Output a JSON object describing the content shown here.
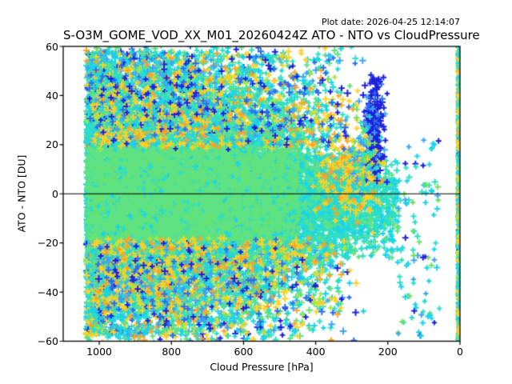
{
  "chart_data": {
    "type": "scatter",
    "title": "S-O3M_GOME_VOD_XX_M01_20260424Z ATO - NTO vs CloudPressure",
    "plot_date": "Plot date: 2026-04-25 12:14:07",
    "xlabel": "Cloud Pressure [hPa]",
    "ylabel": "ATO - NTO [DU]",
    "xlim": [
      1100,
      0
    ],
    "ylim": [
      -60,
      60
    ],
    "x_axis_reversed": true,
    "xticks": [
      1000,
      800,
      600,
      400,
      200,
      0
    ],
    "xtick_labels": [
      "1000",
      "800",
      "600",
      "400",
      "200",
      "0"
    ],
    "yticks": [
      60,
      40,
      20,
      0,
      -20,
      -40,
      -60
    ],
    "ytick_labels": [
      "60",
      "40",
      "20",
      "0",
      "−20",
      "−40",
      "−60"
    ],
    "grid": false,
    "legend": "none",
    "marker": "+",
    "marker_size_px": 7,
    "zero_line_y": 0,
    "background": "#ffffff",
    "text_color": "#000000",
    "axis_color": "#000000",
    "palette": {
      "green": "#60e282",
      "green2": "#6ee25e",
      "turquoise": "#2fdfc4",
      "cyan": "#19d4ea",
      "skyblue": "#3da4f4",
      "blue": "#2d6ceb",
      "navy": "#1c20dd",
      "gold": "#ffd226",
      "orange": "#ffa426",
      "yellowgreen": "#a8e93e"
    },
    "seed": 7,
    "clusters": [
      {
        "name": "left-edge-band",
        "n": 800,
        "x": {
          "dist": "uniform",
          "min": 985,
          "max": 1036
        },
        "y": {
          "dist": "uniform",
          "min": -57,
          "max": 57
        },
        "size": [
          6,
          8
        ],
        "colors": [
          [
            "turquoise",
            0.3
          ],
          [
            "cyan",
            0.25
          ],
          [
            "gold",
            0.12
          ],
          [
            "green",
            0.15
          ],
          [
            "skyblue",
            0.1
          ],
          [
            "orange",
            0.08
          ]
        ]
      },
      {
        "name": "main-halo",
        "n": 9000,
        "x": {
          "dist": "pow",
          "min": 300,
          "max": 1036,
          "exp": 0.5
        },
        "y": {
          "dist": "normal",
          "mean": 0,
          "sd": 23,
          "min": -58,
          "max": 58
        },
        "size": [
          6,
          8
        ],
        "colors": [
          [
            "turquoise",
            0.5
          ],
          [
            "cyan",
            0.3
          ],
          [
            "green",
            0.2
          ]
        ]
      },
      {
        "name": "low-pressure-tip",
        "n": 2600,
        "x": {
          "dist": "pow",
          "min": 168,
          "max": 540,
          "exp": 0.72
        },
        "y": {
          "dist": "normal",
          "mean": -3,
          "sd": 11,
          "min": -27,
          "max": 17
        },
        "size": [
          6,
          8
        ],
        "colors": [
          [
            "turquoise",
            0.5
          ],
          [
            "cyan",
            0.3
          ],
          [
            "green",
            0.2
          ]
        ]
      },
      {
        "name": "green-mid",
        "n": 3200,
        "x": {
          "dist": "pow",
          "min": 360,
          "max": 1034,
          "exp": 0.6
        },
        "y": {
          "dist": "normal",
          "mean": 0,
          "sd": 18,
          "min": -42,
          "max": 42
        },
        "size": [
          6,
          8
        ],
        "colors": [
          [
            "green",
            0.8
          ],
          [
            "turquoise",
            0.12
          ],
          [
            "cyan",
            0.08
          ]
        ]
      },
      {
        "name": "green-core",
        "n": 13500,
        "x": {
          "dist": "pow",
          "min": 445,
          "max": 1030,
          "exp": 0.6
        },
        "y": {
          "dist": "normal",
          "mean": 0,
          "sd": 10.5,
          "min": -25,
          "max": 25
        },
        "size": [
          5,
          8
        ],
        "colors": [
          [
            "green",
            0.85
          ],
          [
            "green2",
            0.05
          ],
          [
            "turquoise",
            0.06
          ],
          [
            "cyan",
            0.04
          ]
        ]
      },
      {
        "name": "outer-fringe",
        "n": 3600,
        "x": {
          "dist": "pow",
          "min": 300,
          "max": 1036,
          "exp": 0.5
        },
        "y": {
          "dist": "edge",
          "a": 20,
          "b": 38,
          "exp": 1.5
        },
        "size": [
          6,
          9
        ],
        "colors": [
          [
            "cyan",
            0.26
          ],
          [
            "turquoise",
            0.2
          ],
          [
            "skyblue",
            0.13
          ],
          [
            "gold",
            0.15
          ],
          [
            "orange",
            0.07
          ],
          [
            "green",
            0.13
          ],
          [
            "yellowgreen",
            0.03
          ],
          [
            "navy",
            0.03
          ]
        ]
      },
      {
        "name": "gold-accents",
        "n": 500,
        "x": {
          "dist": "pow",
          "min": 320,
          "max": 1010,
          "exp": 0.8
        },
        "y": {
          "dist": "edge",
          "a": 18,
          "b": 30,
          "exp": 1.2
        },
        "size": [
          6,
          9
        ],
        "colors": [
          [
            "gold",
            0.6
          ],
          [
            "orange",
            0.3
          ],
          [
            "yellowgreen",
            0.1
          ]
        ]
      },
      {
        "name": "gold-cluster-right",
        "n": 230,
        "x": {
          "dist": "normal",
          "mean": 300,
          "sd": 55,
          "min": 210,
          "max": 430
        },
        "y": {
          "dist": "normal",
          "mean": 10,
          "sd": 11,
          "min": -16,
          "max": 40
        },
        "size": [
          6,
          9
        ],
        "colors": [
          [
            "gold",
            0.6
          ],
          [
            "orange",
            0.3
          ],
          [
            "cyan",
            0.1
          ]
        ]
      },
      {
        "name": "far-outliers",
        "n": 950,
        "x": {
          "dist": "pow",
          "min": 230,
          "max": 1036,
          "exp": 0.55
        },
        "y": {
          "dist": "edge",
          "a": 26,
          "b": 34,
          "exp": 1.1
        },
        "size": [
          6,
          9
        ],
        "colors": [
          [
            "gold",
            0.18
          ],
          [
            "orange",
            0.09
          ],
          [
            "blue",
            0.16
          ],
          [
            "navy",
            0.1
          ],
          [
            "cyan",
            0.17
          ],
          [
            "skyblue",
            0.1
          ],
          [
            "turquoise",
            0.12
          ],
          [
            "green",
            0.05
          ],
          [
            "yellowgreen",
            0.03
          ]
        ]
      },
      {
        "name": "navy-sprinkle-top",
        "n": 120,
        "x": {
          "dist": "uniform",
          "min": 300,
          "max": 1000
        },
        "y": {
          "dist": "uniform",
          "min": 18,
          "max": 57
        },
        "size": [
          6,
          8
        ],
        "colors": [
          [
            "navy",
            0.65
          ],
          [
            "blue",
            0.35
          ]
        ]
      },
      {
        "name": "navy-sprinkle-bottom",
        "n": 55,
        "x": {
          "dist": "uniform",
          "min": 400,
          "max": 1010
        },
        "y": {
          "dist": "uniform",
          "min": -55,
          "max": -15
        },
        "size": [
          6,
          8
        ],
        "colors": [
          [
            "navy",
            0.6
          ],
          [
            "blue",
            0.4
          ]
        ]
      },
      {
        "name": "navy-cluster-200hpa",
        "n": 230,
        "x": {
          "dist": "normal",
          "mean": 237,
          "sd": 13,
          "min": 200,
          "max": 270
        },
        "y": {
          "dist": "normal",
          "mean": 28,
          "sd": 11,
          "min": 4,
          "max": 50
        },
        "size": [
          6,
          9
        ],
        "colors": [
          [
            "navy",
            0.75
          ],
          [
            "blue",
            0.17
          ],
          [
            "skyblue",
            0.08
          ]
        ]
      },
      {
        "name": "cluster-companions",
        "n": 90,
        "x": {
          "dist": "normal",
          "mean": 268,
          "sd": 20,
          "min": 215,
          "max": 330
        },
        "y": {
          "dist": "normal",
          "mean": 15,
          "sd": 10,
          "min": -8,
          "max": 38
        },
        "size": [
          6,
          8
        ],
        "colors": [
          [
            "skyblue",
            0.35
          ],
          [
            "turquoise",
            0.3
          ],
          [
            "gold",
            0.2
          ],
          [
            "green2",
            0.15
          ]
        ]
      },
      {
        "name": "sparse-right-tail",
        "n": 100,
        "x": {
          "dist": "uniform",
          "min": 55,
          "max": 175
        },
        "y": {
          "dist": "uniform",
          "min": -58,
          "max": 22
        },
        "size": [
          6,
          8
        ],
        "colors": [
          [
            "turquoise",
            0.3
          ],
          [
            "cyan",
            0.25
          ],
          [
            "green2",
            0.2
          ],
          [
            "navy",
            0.1
          ],
          [
            "skyblue",
            0.15
          ]
        ]
      },
      {
        "name": "zero-hpa-strip",
        "n": 750,
        "x": {
          "dist": "uniform",
          "min": 0,
          "max": 4.5
        },
        "y": {
          "dist": "uniform",
          "min": -60,
          "max": 60
        },
        "size": [
          6,
          8
        ],
        "colors": [
          [
            "gold",
            0.27
          ],
          [
            "orange",
            0.07
          ],
          [
            "cyan",
            0.2
          ],
          [
            "turquoise",
            0.24
          ],
          [
            "green",
            0.13
          ],
          [
            "yellowgreen",
            0.06
          ],
          [
            "navy",
            0.03
          ]
        ]
      },
      {
        "name": "top-edge-clipped",
        "n": 40,
        "x": {
          "dist": "uniform",
          "min": 300,
          "max": 1040
        },
        "y": {
          "dist": "uniform",
          "min": 56,
          "max": 62
        },
        "size": [
          6,
          8
        ],
        "colors": [
          [
            "green",
            0.3
          ],
          [
            "gold",
            0.2
          ],
          [
            "cyan",
            0.2
          ],
          [
            "navy",
            0.15
          ],
          [
            "turquoise",
            0.15
          ]
        ]
      },
      {
        "name": "bottom-edge-clipped",
        "n": 40,
        "x": {
          "dist": "uniform",
          "min": 430,
          "max": 1040
        },
        "y": {
          "dist": "uniform",
          "min": -62,
          "max": -56
        },
        "size": [
          6,
          8
        ],
        "colors": [
          [
            "green",
            0.3
          ],
          [
            "cyan",
            0.3
          ],
          [
            "turquoise",
            0.2
          ],
          [
            "gold",
            0.2
          ]
        ]
      }
    ]
  }
}
